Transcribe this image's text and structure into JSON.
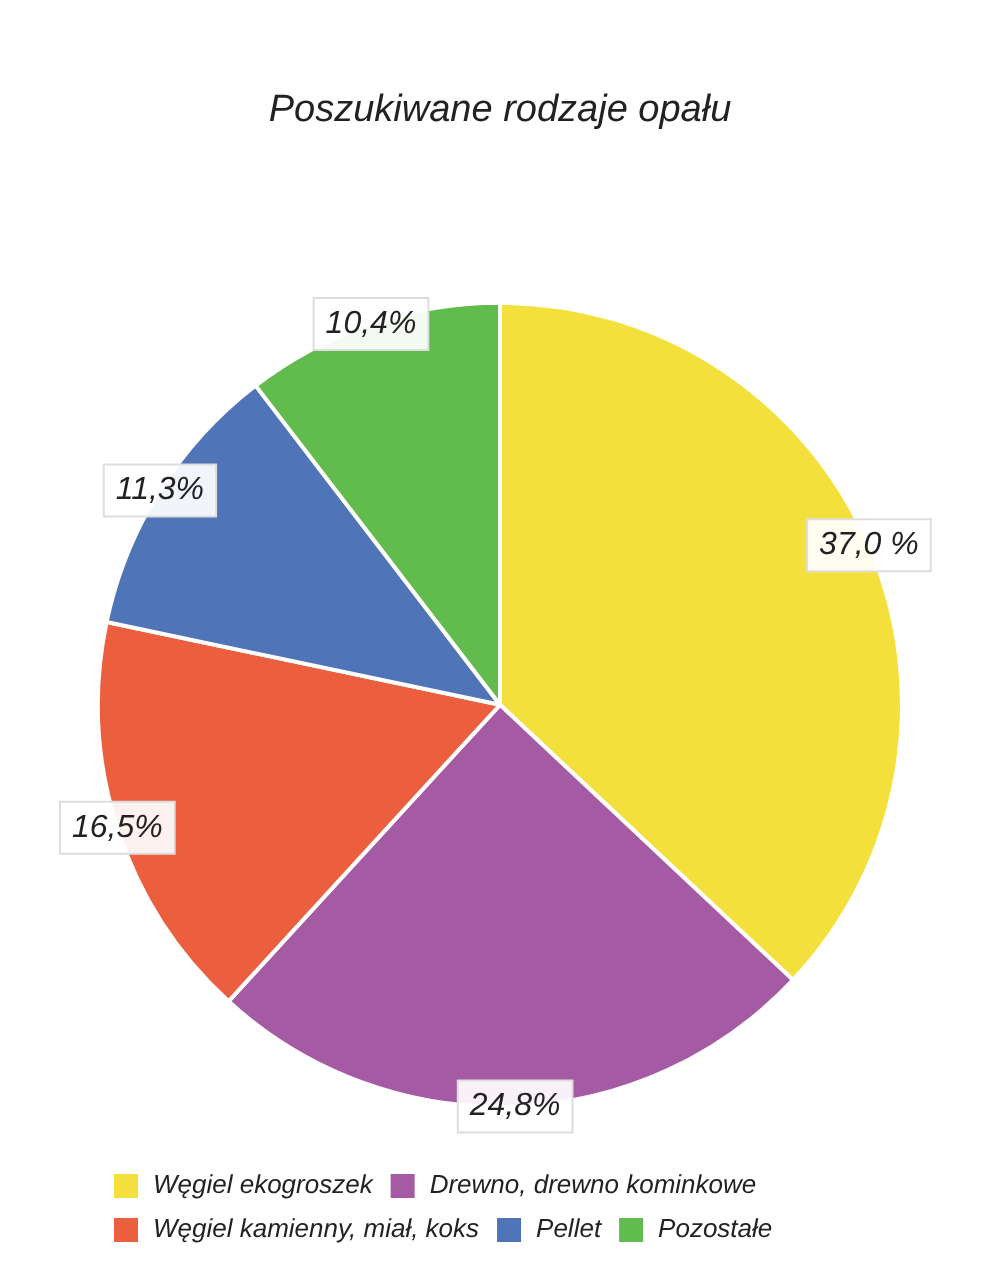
{
  "chart_data": {
    "type": "pie",
    "title": "Poszukiwane rodzaje opału",
    "categories": [
      "Węgiel ekogroszek",
      "Drewno, drewno kominkowe",
      "Węgiel kamienny, miał, koks",
      "Pellet",
      "Pozostałe"
    ],
    "values": [
      37.0,
      24.8,
      16.5,
      11.3,
      10.4
    ],
    "value_labels": [
      "37,0 %",
      "24,8%",
      "16,5%",
      "11,3%",
      "10,4%"
    ],
    "colors": [
      "#f4e03c",
      "#a55ba3",
      "#eb5e3e",
      "#4f74b8",
      "#62bb4d"
    ],
    "legend": "bottom left"
  }
}
